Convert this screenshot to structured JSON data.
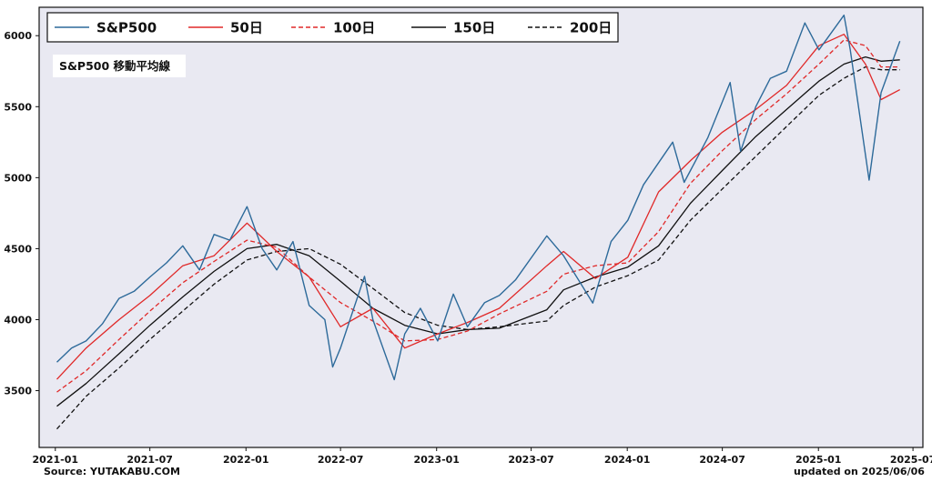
{
  "chart_data": {
    "type": "line",
    "annotation": "S&P500 移動平均線",
    "source_text": "Source: YUTAKABU.COM",
    "updated_text": "updated on 2025/06/06",
    "xlim": [
      "2020-12-01",
      "2025-07-20"
    ],
    "ylim": [
      3100,
      6200
    ],
    "y_ticks": [
      3500,
      4000,
      4500,
      5000,
      5500,
      6000
    ],
    "x_ticks": [
      "2021-01",
      "2021-07",
      "2022-01",
      "2022-07",
      "2023-01",
      "2023-07",
      "2024-01",
      "2024-07",
      "2025-01",
      "2025-07"
    ],
    "grid": false,
    "legend_position": "top-left",
    "colors": {
      "plot_bg": "#e9e9f2",
      "sp500": "#2d6a9a",
      "ma50": "#e02828",
      "ma100": "#e02828",
      "ma150": "#111111",
      "ma200": "#111111"
    },
    "series": [
      {
        "name": "S&P500",
        "color": "#2d6a9a",
        "dash": "none",
        "x": [
          "2021-01-04",
          "2021-02-01",
          "2021-03-01",
          "2021-04-01",
          "2021-05-03",
          "2021-06-01",
          "2021-07-01",
          "2021-08-02",
          "2021-09-02",
          "2021-10-04",
          "2021-11-01",
          "2021-12-01",
          "2022-01-03",
          "2022-02-01",
          "2022-03-01",
          "2022-04-01",
          "2022-05-02",
          "2022-06-01",
          "2022-06-16",
          "2022-07-01",
          "2022-08-16",
          "2022-09-01",
          "2022-10-12",
          "2022-11-01",
          "2022-12-01",
          "2023-01-03",
          "2023-02-02",
          "2023-03-01",
          "2023-04-03",
          "2023-05-01",
          "2023-06-01",
          "2023-07-31",
          "2023-09-01",
          "2023-10-27",
          "2023-12-01",
          "2024-01-02",
          "2024-02-01",
          "2024-03-28",
          "2024-04-19",
          "2024-05-01",
          "2024-06-03",
          "2024-07-16",
          "2024-08-05",
          "2024-09-03",
          "2024-10-01",
          "2024-11-01",
          "2024-12-06",
          "2025-01-02",
          "2025-02-19",
          "2025-03-03",
          "2025-04-08",
          "2025-05-01",
          "2025-06-06"
        ],
        "y": [
          3700,
          3800,
          3850,
          3970,
          4150,
          4200,
          4300,
          4400,
          4520,
          4350,
          4600,
          4560,
          4796,
          4500,
          4350,
          4550,
          4100,
          4000,
          3667,
          3800,
          4305,
          4000,
          3577,
          3900,
          4080,
          3850,
          4180,
          3950,
          4120,
          4170,
          4280,
          4590,
          4450,
          4117,
          4550,
          4700,
          4950,
          5250,
          4967,
          5050,
          5280,
          5670,
          5186,
          5500,
          5700,
          5750,
          6090,
          5900,
          6144,
          5900,
          4983,
          5600,
          5962
        ]
      },
      {
        "name": "50日",
        "color": "#e02828",
        "dash": "none",
        "x": [
          "2021-01-04",
          "2021-03-01",
          "2021-05-03",
          "2021-07-01",
          "2021-09-02",
          "2021-11-01",
          "2022-01-03",
          "2022-03-01",
          "2022-05-02",
          "2022-07-01",
          "2022-09-01",
          "2022-11-01",
          "2023-01-03",
          "2023-03-01",
          "2023-05-01",
          "2023-07-31",
          "2023-09-01",
          "2023-11-01",
          "2024-01-02",
          "2024-03-01",
          "2024-05-01",
          "2024-07-01",
          "2024-09-03",
          "2024-11-01",
          "2025-01-02",
          "2025-02-19",
          "2025-04-01",
          "2025-05-01",
          "2025-06-06"
        ],
        "y": [
          3580,
          3800,
          4000,
          4170,
          4380,
          4450,
          4680,
          4480,
          4300,
          3950,
          4080,
          3800,
          3900,
          3980,
          4080,
          4380,
          4480,
          4290,
          4440,
          4900,
          5120,
          5320,
          5480,
          5650,
          5930,
          6010,
          5800,
          5550,
          5620
        ]
      },
      {
        "name": "100日",
        "color": "#e02828",
        "dash": "5,3",
        "x": [
          "2021-01-04",
          "2021-03-01",
          "2021-05-03",
          "2021-07-01",
          "2021-09-02",
          "2021-11-01",
          "2022-01-03",
          "2022-03-01",
          "2022-05-02",
          "2022-07-01",
          "2022-09-01",
          "2022-11-01",
          "2023-01-03",
          "2023-03-01",
          "2023-05-01",
          "2023-07-31",
          "2023-09-01",
          "2023-11-01",
          "2024-01-02",
          "2024-03-01",
          "2024-05-01",
          "2024-07-01",
          "2024-09-03",
          "2024-11-01",
          "2025-01-02",
          "2025-02-19",
          "2025-04-01",
          "2025-05-01",
          "2025-06-06"
        ],
        "y": [
          3490,
          3640,
          3860,
          4060,
          4260,
          4410,
          4560,
          4510,
          4300,
          4120,
          3990,
          3850,
          3860,
          3920,
          4040,
          4200,
          4320,
          4380,
          4400,
          4620,
          4960,
          5190,
          5410,
          5590,
          5800,
          5970,
          5930,
          5780,
          5780
        ]
      },
      {
        "name": "150日",
        "color": "#111111",
        "dash": "none",
        "x": [
          "2021-01-04",
          "2021-03-01",
          "2021-05-03",
          "2021-07-01",
          "2021-09-02",
          "2021-11-01",
          "2022-01-03",
          "2022-03-01",
          "2022-05-02",
          "2022-07-01",
          "2022-09-01",
          "2022-11-01",
          "2023-01-03",
          "2023-03-01",
          "2023-05-01",
          "2023-07-31",
          "2023-09-01",
          "2023-11-01",
          "2024-01-02",
          "2024-03-01",
          "2024-05-01",
          "2024-07-01",
          "2024-09-03",
          "2024-11-01",
          "2025-01-02",
          "2025-02-19",
          "2025-04-01",
          "2025-05-01",
          "2025-06-06"
        ],
        "y": [
          3390,
          3550,
          3760,
          3960,
          4160,
          4340,
          4500,
          4530,
          4450,
          4270,
          4080,
          3960,
          3900,
          3930,
          3940,
          4070,
          4210,
          4300,
          4370,
          4520,
          4820,
          5050,
          5290,
          5480,
          5680,
          5800,
          5850,
          5820,
          5830
        ]
      },
      {
        "name": "200日",
        "color": "#111111",
        "dash": "5,3",
        "x": [
          "2021-01-04",
          "2021-03-01",
          "2021-05-03",
          "2021-07-01",
          "2021-09-02",
          "2021-11-01",
          "2022-01-03",
          "2022-03-01",
          "2022-05-02",
          "2022-07-01",
          "2022-09-01",
          "2022-11-01",
          "2023-01-03",
          "2023-03-01",
          "2023-05-01",
          "2023-07-31",
          "2023-09-01",
          "2023-11-01",
          "2024-01-02",
          "2024-03-01",
          "2024-05-01",
          "2024-07-01",
          "2024-09-03",
          "2024-11-01",
          "2025-01-02",
          "2025-02-19",
          "2025-04-01",
          "2025-05-01",
          "2025-06-06"
        ],
        "y": [
          3230,
          3460,
          3660,
          3860,
          4060,
          4250,
          4420,
          4480,
          4500,
          4390,
          4220,
          4050,
          3960,
          3930,
          3950,
          3990,
          4100,
          4230,
          4310,
          4420,
          4700,
          4920,
          5150,
          5360,
          5580,
          5700,
          5780,
          5760,
          5760
        ]
      }
    ]
  }
}
